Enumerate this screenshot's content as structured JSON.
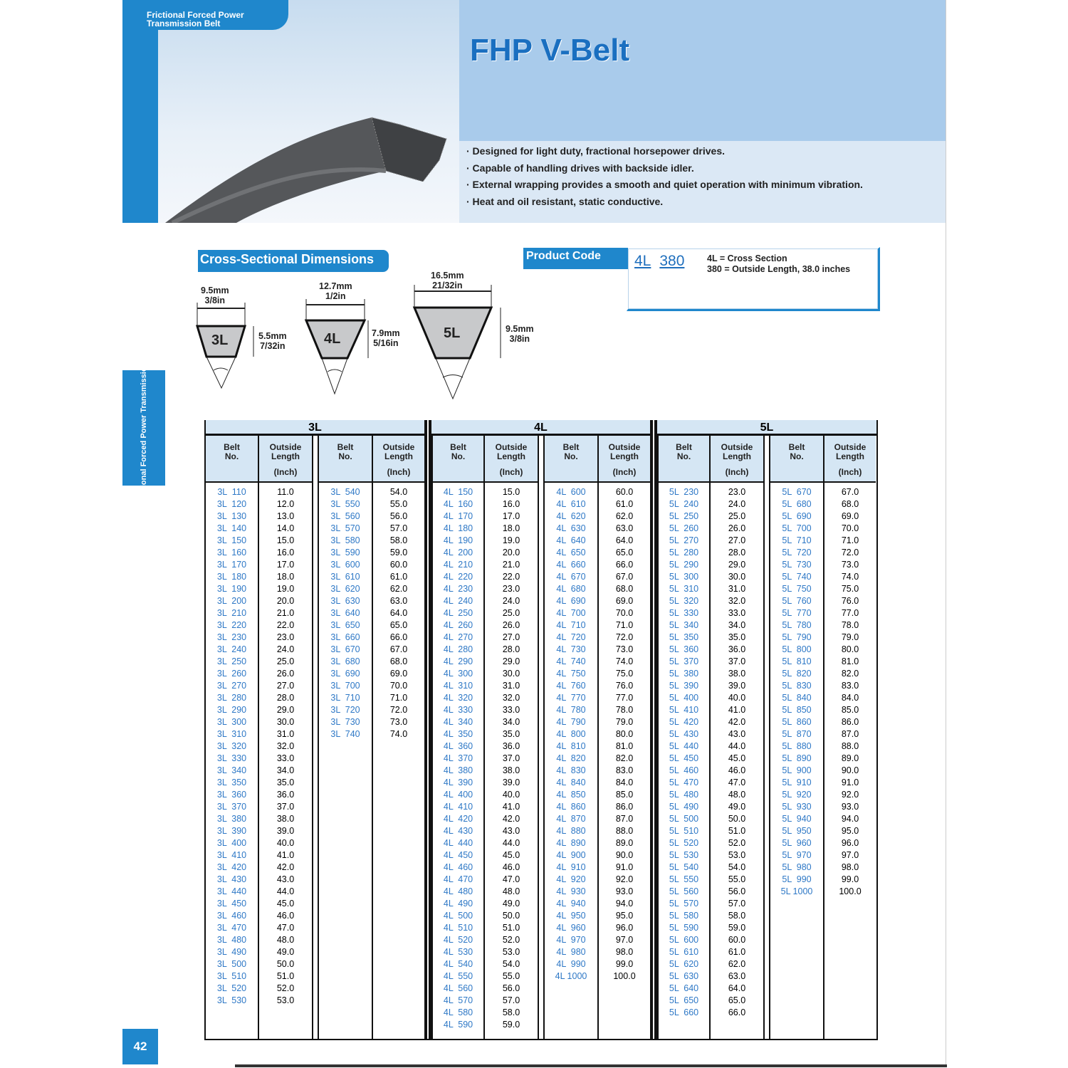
{
  "header": {
    "tag": "Frictional Forced Power Transmission Belt",
    "title": "FHP V-Belt",
    "bullets": [
      "· Designed for light duty, fractional horsepower drives.",
      "· Capable of handling drives with backside idler.",
      "· External wrapping provides a smooth and quiet operation with minimum vibration.",
      "· Heat and oil resistant, static conductive."
    ]
  },
  "side_tab": "II Frictional Forced Power Transmission Belt",
  "page_number": "42",
  "colors": {
    "brand": "#1f87cc",
    "header_fill": "#d5e6f4",
    "belt_text": "#2e78c6"
  },
  "cross_section": {
    "title": "Cross-Sectional Dimensions",
    "sections": [
      {
        "label": "3L",
        "width_mm": "9.5mm",
        "width_in": "3/8in",
        "height_mm": "5.5mm",
        "height_in": "7/32in"
      },
      {
        "label": "4L",
        "width_mm": "12.7mm",
        "width_in": "1/2in",
        "height_mm": "7.9mm",
        "height_in": "5/16in"
      },
      {
        "label": "5L",
        "width_mm": "16.5mm",
        "width_in": "21/32in",
        "height_mm": "9.5mm",
        "height_in": "3/8in"
      }
    ]
  },
  "product_code": {
    "label": "Product Code",
    "section": "4L",
    "length": "380",
    "def1": "4L  =  Cross Section",
    "def2": "380 =  Outside Length, 38.0 inches"
  },
  "table": {
    "headers": {
      "belt": [
        "Belt",
        "No."
      ],
      "length": [
        "Outside",
        "Length"
      ],
      "unit": "(Inch)"
    },
    "groups": [
      {
        "name": "3L",
        "columns": [
          {
            "numbers": [
              110,
              120,
              130,
              140,
              150,
              160,
              170,
              180,
              190,
              200,
              210,
              220,
              230,
              240,
              250,
              260,
              270,
              280,
              290,
              300,
              310,
              320,
              330,
              340,
              350,
              360,
              370,
              380,
              390,
              400,
              410,
              420,
              430,
              440,
              450,
              460,
              470,
              480,
              490,
              500,
              510,
              520,
              530
            ]
          },
          {
            "numbers": [
              540,
              550,
              560,
              570,
              580,
              590,
              600,
              610,
              620,
              630,
              640,
              650,
              660,
              670,
              680,
              690,
              700,
              710,
              720,
              730,
              740
            ]
          }
        ]
      },
      {
        "name": "4L",
        "columns": [
          {
            "numbers": [
              150,
              160,
              170,
              180,
              190,
              200,
              210,
              220,
              230,
              240,
              250,
              260,
              270,
              280,
              290,
              300,
              310,
              320,
              330,
              340,
              350,
              360,
              370,
              380,
              390,
              400,
              410,
              420,
              430,
              440,
              450,
              460,
              470,
              480,
              490,
              500,
              510,
              520,
              530,
              540,
              550,
              560,
              570,
              580,
              590
            ]
          },
          {
            "numbers": [
              600,
              610,
              620,
              630,
              640,
              650,
              660,
              670,
              680,
              690,
              700,
              710,
              720,
              730,
              740,
              750,
              760,
              770,
              780,
              790,
              800,
              810,
              820,
              830,
              840,
              850,
              860,
              870,
              880,
              890,
              900,
              910,
              920,
              930,
              940,
              950,
              960,
              970,
              980,
              990,
              1000
            ]
          }
        ]
      },
      {
        "name": "5L",
        "columns": [
          {
            "numbers": [
              230,
              240,
              250,
              260,
              270,
              280,
              290,
              300,
              310,
              320,
              330,
              340,
              350,
              360,
              370,
              380,
              390,
              400,
              410,
              420,
              430,
              440,
              450,
              460,
              470,
              480,
              490,
              500,
              510,
              520,
              530,
              540,
              550,
              560,
              570,
              580,
              590,
              600,
              610,
              620,
              630,
              640,
              650,
              660
            ]
          },
          {
            "numbers": [
              670,
              680,
              690,
              700,
              710,
              720,
              730,
              740,
              750,
              760,
              770,
              780,
              790,
              800,
              810,
              820,
              830,
              840,
              850,
              860,
              870,
              880,
              890,
              900,
              910,
              920,
              930,
              940,
              950,
              960,
              970,
              980,
              990,
              1000
            ]
          }
        ]
      }
    ]
  }
}
